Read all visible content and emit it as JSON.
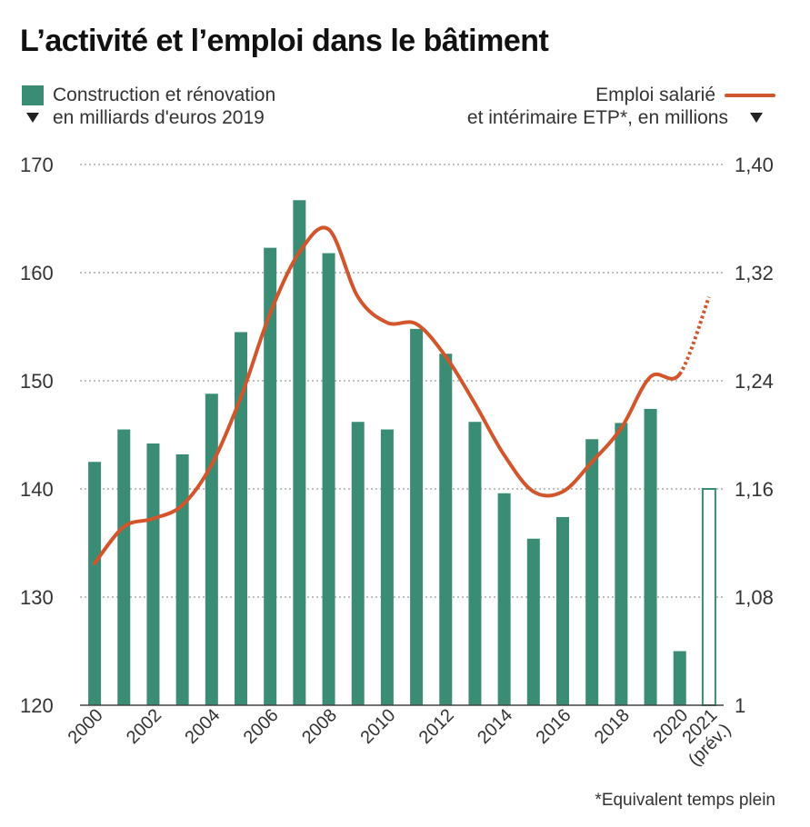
{
  "chart_data": {
    "type": "bar",
    "title": "L’activité et l’emploi dans le bâtiment",
    "categories": [
      "2000",
      "2001",
      "2002",
      "2003",
      "2004",
      "2005",
      "2006",
      "2007",
      "2008",
      "2009",
      "2010",
      "2011",
      "2012",
      "2013",
      "2014",
      "2015",
      "2016",
      "2017",
      "2018",
      "2019",
      "2020",
      "2021"
    ],
    "x_tick_labels": [
      "2000",
      "2002",
      "2004",
      "2006",
      "2008",
      "2010",
      "2012",
      "2014",
      "2016",
      "2018",
      "2020",
      "2021",
      "(prév.)"
    ],
    "series": [
      {
        "name": "Construction et rénovation en milliards d'euros 2019",
        "axis": "left",
        "type": "bar",
        "color": "#3a8c74",
        "values": [
          142.5,
          145.5,
          144.2,
          143.2,
          148.8,
          154.5,
          162.3,
          166.7,
          161.8,
          146.2,
          145.5,
          154.8,
          152.5,
          146.2,
          139.6,
          135.4,
          137.4,
          144.6,
          146.1,
          147.4,
          125.0,
          140.0
        ],
        "forecast_index": 21
      },
      {
        "name": "Emploi salarié et intérimaire ETP*, en millions",
        "axis": "right",
        "type": "line",
        "color": "#d2552c",
        "x": [
          2000,
          2001,
          2002,
          2003,
          2004,
          2005,
          2006,
          2007,
          2008,
          2009,
          2010,
          2011,
          2012,
          2013,
          2014,
          2015,
          2016,
          2017,
          2018,
          2019,
          2020,
          2021
        ],
        "values": [
          1.105,
          1.132,
          1.138,
          1.148,
          1.178,
          1.228,
          1.29,
          1.335,
          1.352,
          1.302,
          1.283,
          1.282,
          1.258,
          1.223,
          1.185,
          1.158,
          1.158,
          1.18,
          1.205,
          1.243,
          1.245,
          1.302
        ],
        "forecast_from_index": 20
      }
    ],
    "left_axis": {
      "ylim": [
        120,
        170
      ],
      "ticks": [
        "120",
        "130",
        "140",
        "150",
        "160",
        "170"
      ]
    },
    "right_axis": {
      "ylim": [
        1.0,
        1.4
      ],
      "ticks": [
        "1",
        "1,08",
        "1,16",
        "1,24",
        "1,32",
        "1,40"
      ]
    },
    "grid": "horizontal dotted",
    "legend": {
      "left_label_line1": "Construction et rénovation",
      "left_label_line2": "en milliards d'euros 2019",
      "right_label_line1": "Emploi salarié",
      "right_label_line2": "et intérimaire ETP*, en millions"
    },
    "footnote": "*Equivalent temps plein"
  }
}
